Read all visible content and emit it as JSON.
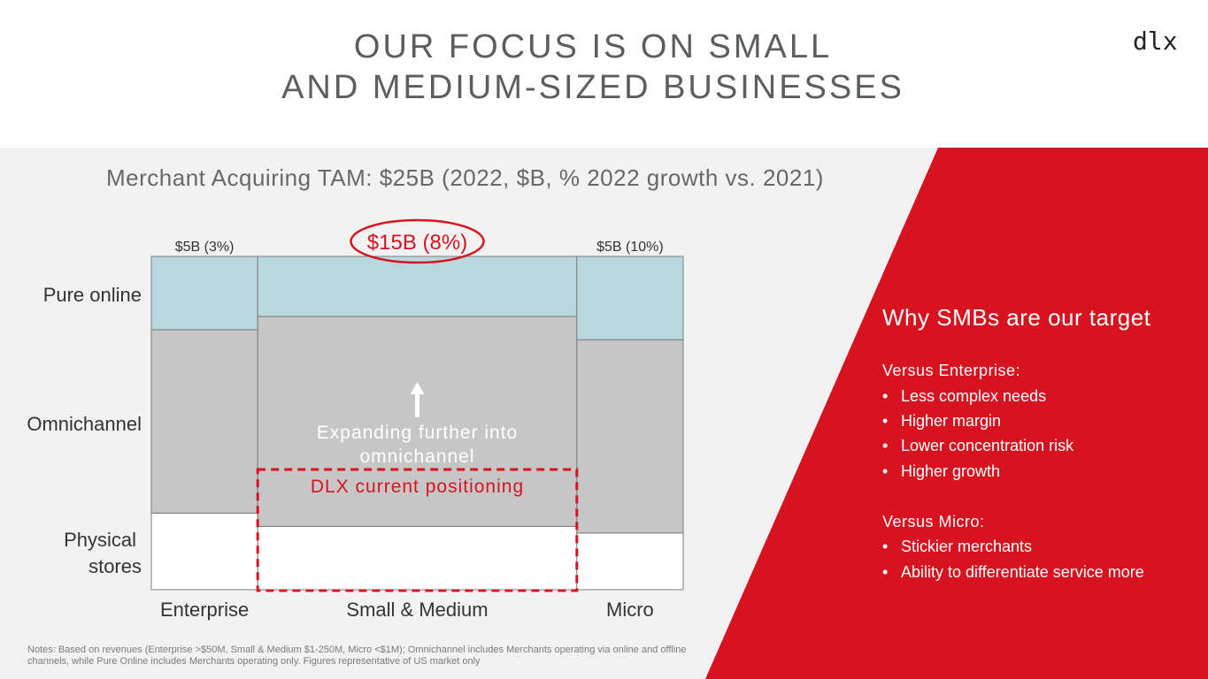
{
  "title": {
    "line1": "OUR FOCUS IS ON SMALL",
    "line2": "AND MEDIUM-SIZED BUSINESSES"
  },
  "logo": "dlx",
  "colors": {
    "red": "#d71320",
    "online": "#b8d8de",
    "omni": "#c6c6c6",
    "physical": "#ffffff",
    "panel": "#f2f2f2"
  },
  "chart_data": {
    "type": "bar",
    "variant": "marimekko",
    "title": "Merchant Acquiring TAM: $25B (2022, $B, % 2022 growth vs. 2021)",
    "categories": [
      "Enterprise",
      "Small & Medium",
      "Micro"
    ],
    "column_labels": [
      "$5B (3%)",
      "$15B (8%)",
      "$5B (10%)"
    ],
    "column_values_billion": [
      5,
      15,
      5
    ],
    "column_growth_pct": [
      3,
      8,
      10
    ],
    "series": [
      {
        "name": "Physical stores",
        "values": [
          23,
          19,
          17
        ]
      },
      {
        "name": "Omnichannel",
        "values": [
          55,
          63,
          58
        ]
      },
      {
        "name": "Pure online",
        "values": [
          22,
          18,
          25
        ]
      }
    ],
    "annotations": {
      "arrow_text": "Expanding further into omnichannel",
      "positioning": "DLX current positioning"
    }
  },
  "row_labels": {
    "online": "Pure online",
    "omni": "Omnichannel",
    "physical_1": "Physical",
    "physical_2": "stores"
  },
  "sidebar": {
    "heading": "Why SMBs are our target",
    "enterprise_title": "Versus Enterprise:",
    "enterprise_items": [
      "Less complex needs",
      "Higher margin",
      "Lower concentration risk",
      "Higher growth"
    ],
    "micro_title": "Versus Micro:",
    "micro_items": [
      "Stickier merchants",
      "Ability to differentiate service more"
    ],
    "bullet": "•"
  },
  "notes": "Notes: Based on revenues (Enterprise >$50M, Small & Medium $1-250M, Micro <$1M); Omnichannel includes Merchants operating via online and offline channels, while Pure Online includes Merchants operating only. Figures representative of US market only"
}
